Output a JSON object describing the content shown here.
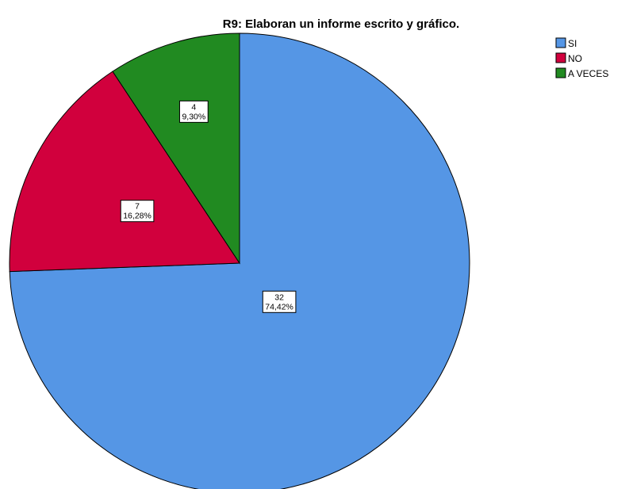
{
  "chart_data": {
    "type": "pie",
    "title": "R9: Elaboran un informe escrito y gráfico.",
    "slices": [
      {
        "name": "SI",
        "value": 32,
        "percent": "74,42%",
        "color": "#5596e5"
      },
      {
        "name": "NO",
        "value": 7,
        "percent": "16,28%",
        "color": "#d1003d"
      },
      {
        "name": "A VECES",
        "value": 4,
        "percent": "9,30%",
        "color": "#218a21"
      }
    ],
    "start_angle": "12 o'clock",
    "direction": "clockwise",
    "legend_position": "top-right"
  }
}
